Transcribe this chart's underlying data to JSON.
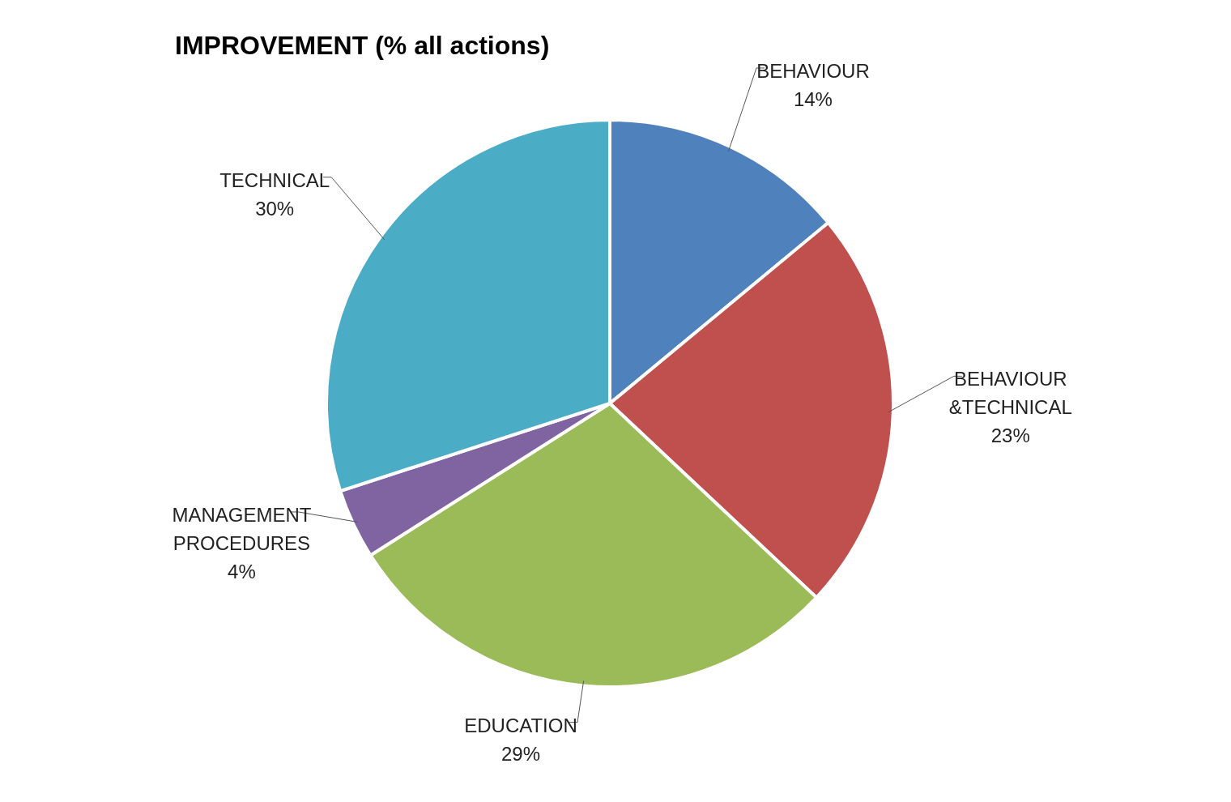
{
  "chart_data": {
    "type": "pie",
    "title": "IMPROVEMENT (% all actions)",
    "categories": [
      "BEHAVIOUR",
      "BEHAVIOUR &TECHNICAL",
      "EDUCATION",
      "MANAGEMENT PROCEDURES",
      "TECHNICAL"
    ],
    "values": [
      14,
      23,
      29,
      4,
      30
    ],
    "colors": [
      "#4f81bd",
      "#c0504d",
      "#9bbb59",
      "#8064a2",
      "#4bacc6"
    ],
    "value_labels": [
      "14%",
      "23%",
      "29%",
      "4%",
      "30%"
    ],
    "legend": false
  }
}
